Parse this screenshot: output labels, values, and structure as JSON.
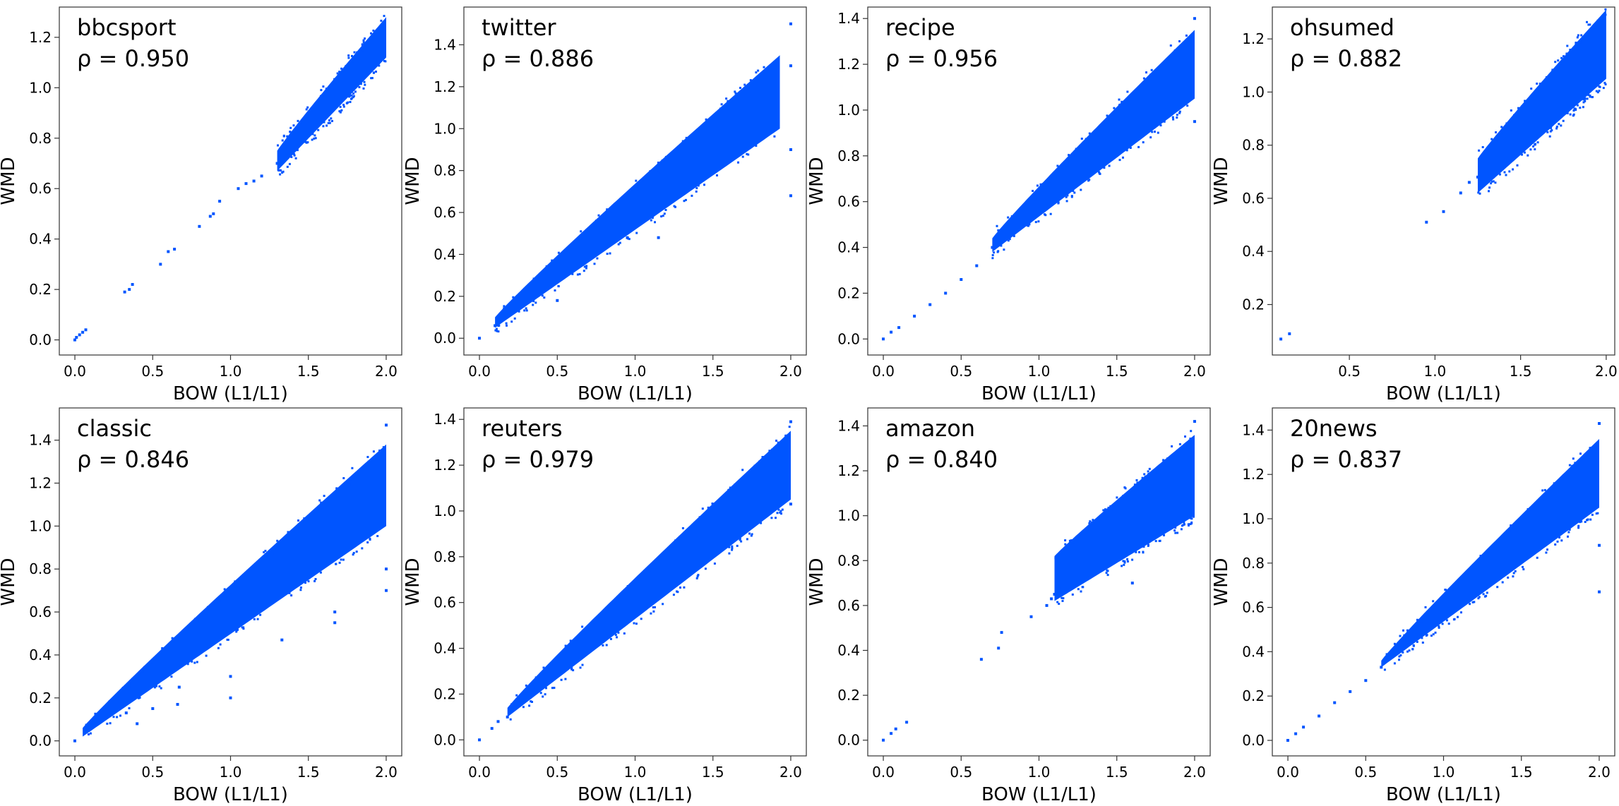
{
  "figure": {
    "accent_color": "#0055ff",
    "axis_color": "#333333"
  },
  "chart_data": [
    {
      "type": "scatter",
      "title": "bbcsport",
      "annotation": "ρ = 0.950",
      "xlabel": "BOW (L1/L1)",
      "ylabel": "WMD",
      "xlim": [
        -0.1,
        2.1
      ],
      "ylim": [
        -0.06,
        1.32
      ],
      "xticks": [
        0,
        0.5,
        1,
        1.5,
        2
      ],
      "xtick_labels": [
        "0.0",
        "0.5",
        "1.0",
        "1.5",
        "2.0"
      ],
      "yticks": [
        0,
        0.2,
        0.4,
        0.6,
        0.8,
        1.0,
        1.2
      ],
      "ytick_labels": [
        "0.0",
        "0.2",
        "0.4",
        "0.6",
        "0.8",
        "1.0",
        "1.2"
      ],
      "grid": false,
      "points": [
        [
          0.0,
          0.0
        ],
        [
          0.01,
          0.01
        ],
        [
          0.03,
          0.02
        ],
        [
          0.05,
          0.03
        ],
        [
          0.07,
          0.04
        ],
        [
          0.32,
          0.19
        ],
        [
          0.35,
          0.2
        ],
        [
          0.37,
          0.22
        ],
        [
          0.55,
          0.3
        ],
        [
          0.6,
          0.35
        ],
        [
          0.64,
          0.36
        ],
        [
          0.8,
          0.45
        ],
        [
          0.87,
          0.49
        ],
        [
          0.89,
          0.5
        ],
        [
          0.93,
          0.55
        ],
        [
          1.05,
          0.6
        ],
        [
          1.1,
          0.62
        ],
        [
          1.15,
          0.63
        ],
        [
          1.2,
          0.65
        ],
        [
          1.3,
          0.7
        ]
      ],
      "band": {
        "x_start": 1.3,
        "x_end": 2.0,
        "lower": [
          0.67,
          1.12
        ],
        "upper": [
          0.75,
          1.28
        ]
      }
    },
    {
      "type": "scatter",
      "title": "twitter",
      "annotation": "ρ = 0.886",
      "xlabel": "BOW (L1/L1)",
      "ylabel": "WMD",
      "xlim": [
        -0.1,
        2.1
      ],
      "ylim": [
        -0.08,
        1.58
      ],
      "xticks": [
        0,
        0.5,
        1,
        1.5,
        2
      ],
      "xtick_labels": [
        "0.0",
        "0.5",
        "1.0",
        "1.5",
        "2.0"
      ],
      "yticks": [
        0,
        0.2,
        0.4,
        0.6,
        0.8,
        1.0,
        1.2,
        1.4
      ],
      "ytick_labels": [
        "0.0",
        "0.2",
        "0.4",
        "0.6",
        "0.8",
        "1.0",
        "1.2",
        "1.4"
      ],
      "grid": false,
      "points": [
        [
          0.0,
          0.0
        ],
        [
          0.1,
          0.06
        ],
        [
          1.15,
          0.48
        ],
        [
          0.95,
          0.48
        ],
        [
          0.5,
          0.18
        ],
        [
          2.0,
          0.68
        ],
        [
          2.0,
          0.9
        ],
        [
          2.0,
          1.3
        ],
        [
          2.0,
          1.5
        ]
      ],
      "band": {
        "x_start": 0.1,
        "x_end": 1.93,
        "lower": [
          0.05,
          1.0
        ],
        "upper": [
          0.1,
          1.35
        ]
      }
    },
    {
      "type": "scatter",
      "title": "recipe",
      "annotation": "ρ = 0.956",
      "xlabel": "BOW (L1/L1)",
      "ylabel": "WMD",
      "xlim": [
        -0.1,
        2.1
      ],
      "ylim": [
        -0.07,
        1.45
      ],
      "xticks": [
        0,
        0.5,
        1,
        1.5,
        2
      ],
      "xtick_labels": [
        "0.0",
        "0.5",
        "1.0",
        "1.5",
        "2.0"
      ],
      "yticks": [
        0,
        0.2,
        0.4,
        0.6,
        0.8,
        1.0,
        1.2,
        1.4
      ],
      "ytick_labels": [
        "0.0",
        "0.2",
        "0.4",
        "0.6",
        "0.8",
        "1.0",
        "1.2",
        "1.4"
      ],
      "grid": false,
      "points": [
        [
          0.0,
          0.0
        ],
        [
          0.05,
          0.03
        ],
        [
          0.1,
          0.05
        ],
        [
          0.2,
          0.1
        ],
        [
          0.3,
          0.15
        ],
        [
          0.4,
          0.2
        ],
        [
          0.5,
          0.26
        ],
        [
          0.6,
          0.32
        ],
        [
          0.7,
          0.4
        ],
        [
          2.0,
          0.95
        ],
        [
          2.0,
          1.4
        ]
      ],
      "band": {
        "x_start": 0.7,
        "x_end": 2.0,
        "lower": [
          0.38,
          1.05
        ],
        "upper": [
          0.44,
          1.35
        ]
      }
    },
    {
      "type": "scatter",
      "title": "ohsumed",
      "annotation": "ρ = 0.882",
      "xlabel": "BOW (L1/L1)",
      "ylabel": "WMD",
      "xlim": [
        0.05,
        2.05
      ],
      "ylim": [
        0.01,
        1.32
      ],
      "xticks": [
        0.5,
        1,
        1.5,
        2
      ],
      "xtick_labels": [
        "0.5",
        "1.0",
        "1.5",
        "2.0"
      ],
      "yticks": [
        0.2,
        0.4,
        0.6,
        0.8,
        1.0,
        1.2
      ],
      "ytick_labels": [
        "0.2",
        "0.4",
        "0.6",
        "0.8",
        "1.0",
        "1.2"
      ],
      "grid": false,
      "points": [
        [
          0.1,
          0.07
        ],
        [
          0.15,
          0.09
        ],
        [
          0.95,
          0.51
        ],
        [
          1.05,
          0.55
        ],
        [
          1.15,
          0.62
        ],
        [
          1.2,
          0.66
        ],
        [
          1.25,
          0.68
        ]
      ],
      "band": {
        "x_start": 1.25,
        "x_end": 2.0,
        "lower": [
          0.62,
          1.05
        ],
        "upper": [
          0.75,
          1.31
        ]
      }
    },
    {
      "type": "scatter",
      "title": "classic",
      "annotation": "ρ = 0.846",
      "xlabel": "BOW (L1/L1)",
      "ylabel": "WMD",
      "xlim": [
        -0.1,
        2.1
      ],
      "ylim": [
        -0.07,
        1.55
      ],
      "xticks": [
        0,
        0.5,
        1,
        1.5,
        2
      ],
      "xtick_labels": [
        "0.0",
        "0.5",
        "1.0",
        "1.5",
        "2.0"
      ],
      "yticks": [
        0,
        0.2,
        0.4,
        0.6,
        0.8,
        1.0,
        1.2,
        1.4
      ],
      "ytick_labels": [
        "0.0",
        "0.2",
        "0.4",
        "0.6",
        "0.8",
        "1.0",
        "1.2",
        "1.4"
      ],
      "grid": false,
      "points": [
        [
          0.0,
          0.0
        ],
        [
          0.4,
          0.08
        ],
        [
          0.66,
          0.17
        ],
        [
          0.67,
          0.25
        ],
        [
          1.0,
          0.2
        ],
        [
          1.0,
          0.3
        ],
        [
          1.33,
          0.47
        ],
        [
          1.67,
          0.55
        ],
        [
          1.67,
          0.6
        ],
        [
          2.0,
          0.7
        ],
        [
          2.0,
          0.8
        ],
        [
          2.0,
          1.47
        ],
        [
          0.5,
          0.15
        ],
        [
          0.33,
          0.13
        ]
      ],
      "band": {
        "x_start": 0.05,
        "x_end": 2.0,
        "lower": [
          0.02,
          1.0
        ],
        "upper": [
          0.06,
          1.38
        ]
      }
    },
    {
      "type": "scatter",
      "title": "reuters",
      "annotation": "ρ = 0.979",
      "xlabel": "BOW (L1/L1)",
      "ylabel": "WMD",
      "xlim": [
        -0.1,
        2.1
      ],
      "ylim": [
        -0.07,
        1.45
      ],
      "xticks": [
        0,
        0.5,
        1,
        1.5,
        2
      ],
      "xtick_labels": [
        "0.0",
        "0.5",
        "1.0",
        "1.5",
        "2.0"
      ],
      "yticks": [
        0,
        0.2,
        0.4,
        0.6,
        0.8,
        1.0,
        1.2,
        1.4
      ],
      "ytick_labels": [
        "0.0",
        "0.2",
        "0.4",
        "0.6",
        "0.8",
        "1.0",
        "1.2",
        "1.4"
      ],
      "grid": false,
      "points": [
        [
          0.0,
          0.0
        ],
        [
          0.08,
          0.05
        ],
        [
          0.12,
          0.08
        ],
        [
          0.18,
          0.1
        ],
        [
          2.0,
          1.03
        ],
        [
          2.0,
          1.39
        ]
      ],
      "band": {
        "x_start": 0.18,
        "x_end": 2.0,
        "lower": [
          0.1,
          1.05
        ],
        "upper": [
          0.14,
          1.35
        ]
      }
    },
    {
      "type": "scatter",
      "title": "amazon",
      "annotation": "ρ = 0.840",
      "xlabel": "BOW (L1/L1)",
      "ylabel": "WMD",
      "xlim": [
        -0.1,
        2.1
      ],
      "ylim": [
        -0.07,
        1.48
      ],
      "xticks": [
        0,
        0.5,
        1,
        1.5,
        2
      ],
      "xtick_labels": [
        "0.0",
        "0.5",
        "1.0",
        "1.5",
        "2.0"
      ],
      "yticks": [
        0,
        0.2,
        0.4,
        0.6,
        0.8,
        1.0,
        1.2,
        1.4
      ],
      "ytick_labels": [
        "0.0",
        "0.2",
        "0.4",
        "0.6",
        "0.8",
        "1.0",
        "1.2",
        "1.4"
      ],
      "grid": false,
      "points": [
        [
          0.0,
          0.0
        ],
        [
          0.05,
          0.03
        ],
        [
          0.08,
          0.05
        ],
        [
          0.15,
          0.08
        ],
        [
          0.63,
          0.36
        ],
        [
          0.74,
          0.41
        ],
        [
          0.76,
          0.48
        ],
        [
          0.95,
          0.55
        ],
        [
          1.05,
          0.6
        ],
        [
          1.08,
          0.63
        ],
        [
          1.1,
          0.65
        ],
        [
          1.15,
          0.68
        ],
        [
          1.6,
          0.7
        ],
        [
          2.0,
          1.42
        ]
      ],
      "band": {
        "x_start": 1.1,
        "x_end": 2.0,
        "lower": [
          0.62,
          1.0
        ],
        "upper": [
          0.82,
          1.36
        ]
      }
    },
    {
      "type": "scatter",
      "title": "20news",
      "annotation": "ρ = 0.837",
      "xlabel": "BOW (L1/L1)",
      "ylabel": "WMD",
      "xlim": [
        -0.1,
        2.1
      ],
      "ylim": [
        -0.07,
        1.5
      ],
      "xticks": [
        0,
        0.5,
        1,
        1.5,
        2
      ],
      "xtick_labels": [
        "0.0",
        "0.5",
        "1.0",
        "1.5",
        "2.0"
      ],
      "yticks": [
        0,
        0.2,
        0.4,
        0.6,
        0.8,
        1.0,
        1.2,
        1.4
      ],
      "ytick_labels": [
        "0.0",
        "0.2",
        "0.4",
        "0.6",
        "0.8",
        "1.0",
        "1.2",
        "1.4"
      ],
      "grid": false,
      "points": [
        [
          0.0,
          0.0
        ],
        [
          0.05,
          0.03
        ],
        [
          0.1,
          0.06
        ],
        [
          0.2,
          0.11
        ],
        [
          0.3,
          0.17
        ],
        [
          0.4,
          0.22
        ],
        [
          0.5,
          0.27
        ],
        [
          0.6,
          0.33
        ],
        [
          2.0,
          0.67
        ],
        [
          2.0,
          0.88
        ],
        [
          2.0,
          1.43
        ]
      ],
      "band": {
        "x_start": 0.6,
        "x_end": 2.0,
        "lower": [
          0.33,
          1.05
        ],
        "upper": [
          0.36,
          1.36
        ]
      }
    }
  ]
}
